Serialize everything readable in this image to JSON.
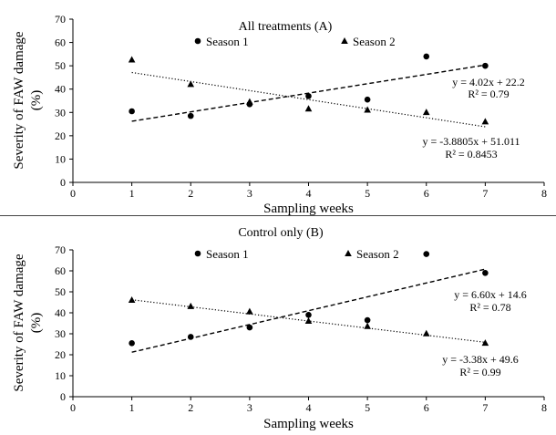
{
  "chart_data": [
    {
      "type": "scatter",
      "title": "All treatments (A)",
      "xlabel": "Sampling weeks",
      "ylabel": "Severity of FAW damage",
      "ylabel_unit": "(%)",
      "xlim": [
        0,
        8
      ],
      "ylim": [
        0,
        70
      ],
      "xticks": [
        "0",
        "1",
        "2",
        "3",
        "4",
        "5",
        "6",
        "7",
        "8"
      ],
      "yticks": [
        "0",
        "10",
        "20",
        "30",
        "40",
        "50",
        "60",
        "70"
      ],
      "grid": false,
      "legend_position": "top",
      "series": [
        {
          "name": "Season 1",
          "marker": "circle",
          "x": [
            1,
            2,
            3,
            4,
            5,
            6,
            7
          ],
          "y": [
            30.5,
            28.5,
            33.5,
            37,
            35.5,
            54,
            50
          ],
          "trendline": {
            "style": "dashed",
            "slope": 4.02,
            "intercept": 22.2,
            "x_range": [
              1,
              7
            ]
          },
          "equation": "y = 4.02x + 22.2",
          "r2": "R² = 0.79"
        },
        {
          "name": "Season 2",
          "marker": "triangle",
          "x": [
            1,
            2,
            3,
            4,
            5,
            6,
            7
          ],
          "y": [
            52.5,
            42,
            34.5,
            31.5,
            31,
            30,
            26
          ],
          "trendline": {
            "style": "dotted",
            "slope": -3.8805,
            "intercept": 51.011,
            "x_range": [
              1,
              7
            ]
          },
          "equation": "y = -3.8805x + 51.011",
          "r2": "R² = 0.8453"
        }
      ]
    },
    {
      "type": "scatter",
      "title": "Control only (B)",
      "xlabel": "Sampling weeks",
      "ylabel": "Severity of FAW damage",
      "ylabel_unit": "(%)",
      "xlim": [
        0,
        8
      ],
      "ylim": [
        0,
        70
      ],
      "xticks": [
        "0",
        "1",
        "2",
        "3",
        "4",
        "5",
        "6",
        "7",
        "8"
      ],
      "yticks": [
        "0",
        "10",
        "20",
        "30",
        "40",
        "50",
        "60",
        "70"
      ],
      "grid": false,
      "legend_position": "top",
      "series": [
        {
          "name": "Season 1",
          "marker": "circle",
          "x": [
            1,
            2,
            3,
            4,
            5,
            6,
            7
          ],
          "y": [
            25.5,
            28.5,
            33,
            39,
            36.5,
            68,
            59
          ],
          "trendline": {
            "style": "dashed",
            "slope": 6.6,
            "intercept": 14.6,
            "x_range": [
              1,
              7
            ]
          },
          "equation": "y = 6.60x + 14.6",
          "r2": "R² = 0.78"
        },
        {
          "name": "Season 2",
          "marker": "triangle",
          "x": [
            1,
            2,
            3,
            4,
            5,
            6,
            7
          ],
          "y": [
            46,
            43,
            40.5,
            36,
            33.5,
            30,
            25.5
          ],
          "trendline": {
            "style": "dotted",
            "slope": -3.38,
            "intercept": 49.6,
            "x_range": [
              1,
              7
            ]
          },
          "equation": "y = -3.38x + 49.6",
          "r2": "R² = 0.99"
        }
      ]
    }
  ]
}
